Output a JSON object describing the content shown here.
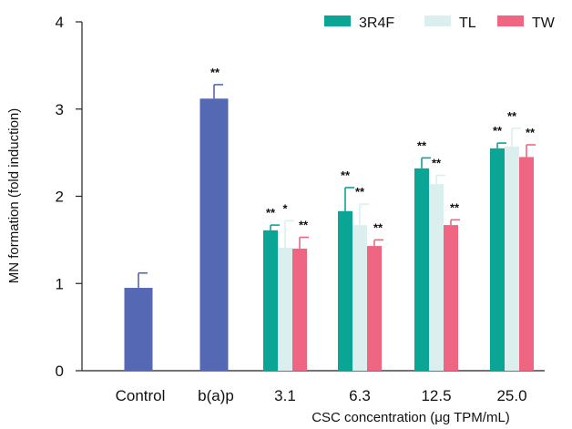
{
  "chart_data": {
    "type": "bar",
    "title": "",
    "xlabel": "CSC concentration (μg TPM/mL)",
    "ylabel": "MN formation (fold induction)",
    "ylim": [
      0,
      4
    ],
    "yticks": [
      0,
      1,
      2,
      3,
      4
    ],
    "grid": false,
    "legend_position": "top-right",
    "legend": [
      "3R4F",
      "TL",
      "TW"
    ],
    "control_color": "#5468b4",
    "single_groups": [
      {
        "category": "Control",
        "value": 0.95,
        "error": 0.17,
        "sig": ""
      },
      {
        "category": "b(a)p",
        "value": 3.12,
        "error": 0.16,
        "sig": "**"
      }
    ],
    "categories": [
      "3.1",
      "6.3",
      "12.5",
      "25.0"
    ],
    "series": [
      {
        "name": "3R4F",
        "color": "#0aa594",
        "values": [
          1.61,
          1.83,
          2.32,
          2.55
        ],
        "errors": [
          0.06,
          0.27,
          0.12,
          0.06
        ],
        "sig": [
          "**",
          "**",
          "**",
          "**"
        ]
      },
      {
        "name": "TL",
        "color": "#dbf0ee",
        "values": [
          1.41,
          1.67,
          2.14,
          2.57
        ],
        "errors": [
          0.31,
          0.24,
          0.1,
          0.21
        ],
        "sig": [
          "*",
          "**",
          "**",
          "**"
        ]
      },
      {
        "name": "TW",
        "color": "#ef6683",
        "values": [
          1.4,
          1.43,
          1.67,
          2.45
        ],
        "errors": [
          0.13,
          0.07,
          0.06,
          0.14
        ],
        "sig": [
          "**",
          "**",
          "**",
          "**"
        ]
      }
    ]
  }
}
